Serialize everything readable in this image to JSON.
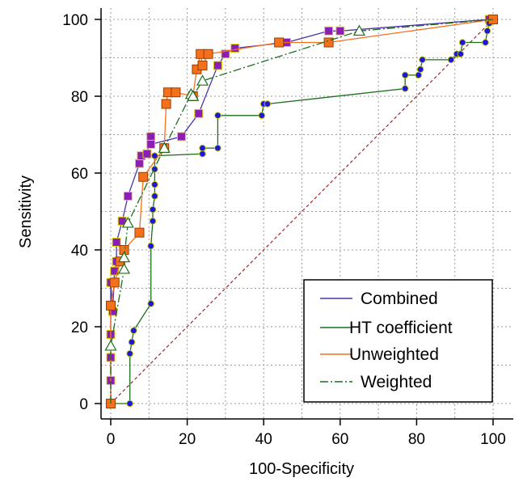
{
  "chart_data": {
    "type": "line",
    "xlabel": "100-Specificity",
    "ylabel": "Sensitivity",
    "xlim": [
      0,
      100
    ],
    "ylim": [
      0,
      100
    ],
    "xticks": [
      "0",
      "20",
      "40",
      "60",
      "80",
      "100"
    ],
    "yticks": [
      "0",
      "20",
      "40",
      "60",
      "80",
      "100"
    ],
    "grid": true,
    "legend_position": "bottom-right",
    "reference_line": {
      "x": [
        0,
        100
      ],
      "y": [
        0,
        100
      ],
      "color": "#a0282b",
      "style": "dashed"
    },
    "series": [
      {
        "name": "Combined",
        "color": "#4b33a6",
        "marker_fill": "#8b1fb5",
        "marker": "square",
        "line": "solid",
        "x": [
          0,
          0,
          0,
          0,
          0,
          0.5,
          1,
          1.5,
          1.5,
          3,
          4.5,
          7.5,
          8,
          9.5,
          10.5,
          10.5,
          18.5,
          23,
          28,
          30,
          32.5,
          46,
          57,
          60,
          99,
          100
        ],
        "y": [
          0,
          6,
          12,
          18,
          31.5,
          24,
          34.5,
          37,
          42,
          47.5,
          54,
          62.5,
          64.5,
          65,
          69.5,
          67.5,
          69.5,
          75.5,
          88,
          91,
          92.5,
          94,
          97,
          97,
          100,
          100
        ]
      },
      {
        "name": "HT coefficient",
        "color": "#1b6e1b",
        "marker_fill": "#1a1ad6",
        "marker": "circle",
        "line": "solid",
        "x": [
          0,
          5,
          5,
          5.5,
          6,
          10.5,
          10.5,
          11,
          11,
          11.5,
          11.5,
          11.5,
          11.5,
          24,
          24,
          28,
          28,
          39.5,
          40,
          41,
          77,
          77,
          80.5,
          81,
          81.5,
          89,
          90.5,
          91.5,
          92,
          98,
          98.5,
          99,
          100
        ],
        "y": [
          0,
          0,
          13,
          16,
          19,
          26,
          41,
          47.5,
          50.5,
          54,
          57,
          61,
          64.5,
          65,
          66.5,
          66.5,
          75,
          75,
          78,
          78,
          82,
          85.5,
          85.5,
          87,
          89.5,
          89.5,
          91,
          91,
          94,
          94,
          97,
          99,
          100
        ]
      },
      {
        "name": "Unweighted",
        "color": "#f5701a",
        "marker_fill": "#f5701a",
        "marker": "square",
        "line": "solid",
        "x": [
          0,
          0,
          1,
          2.5,
          3.5,
          7.5,
          8.5,
          14,
          14.5,
          15,
          17,
          21.5,
          22.5,
          23.5,
          24,
          25.5,
          44,
          57,
          100
        ],
        "y": [
          0,
          25.5,
          31.5,
          37,
          40,
          44.5,
          59,
          66.5,
          78,
          81,
          81,
          80,
          87,
          91,
          88,
          91,
          94,
          94,
          100
        ]
      },
      {
        "name": "Weighted",
        "color": "#1b6e1b",
        "marker_fill": "none",
        "marker": "triangle",
        "line": "dashdot",
        "x": [
          0,
          0,
          3.5,
          3.5,
          4.5,
          14,
          21,
          21.5,
          24,
          65,
          100
        ],
        "y": [
          0,
          15,
          35,
          38,
          47,
          66.5,
          80.5,
          80,
          84,
          97,
          100
        ]
      }
    ]
  }
}
